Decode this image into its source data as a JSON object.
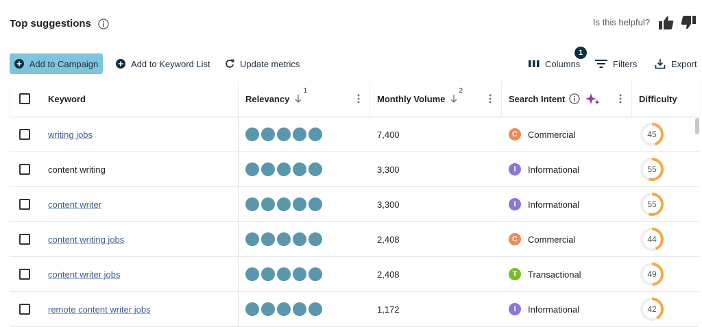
{
  "header": {
    "title": "Top suggestions",
    "helpful": "Is this helpful?"
  },
  "toolbar": {
    "add_campaign": "Add to Campaign",
    "add_list": "Add to Keyword List",
    "update": "Update metrics",
    "columns": "Columns",
    "columns_badge": "1",
    "filters": "Filters",
    "export": "Export"
  },
  "table": {
    "columns": {
      "keyword": "Keyword",
      "relevancy": "Relevancy",
      "relevancy_sort": "1",
      "volume": "Monthly Volume",
      "volume_sort": "2",
      "intent": "Search Intent",
      "difficulty": "Difficulty"
    },
    "intent_colors": {
      "Commercial": "#ef8a57",
      "Informational": "#8878d8",
      "Transactional": "#7dbb2f"
    },
    "rows": [
      {
        "keyword": "writing jobs",
        "linked": true,
        "relevancy": 5,
        "volume": "7,400",
        "intent_letter": "C",
        "intent": "Commercial",
        "difficulty": 45
      },
      {
        "keyword": "content writing",
        "linked": false,
        "relevancy": 5,
        "volume": "3,300",
        "intent_letter": "I",
        "intent": "Informational",
        "difficulty": 55
      },
      {
        "keyword": "content writer",
        "linked": true,
        "relevancy": 5,
        "volume": "3,300",
        "intent_letter": "I",
        "intent": "Informational",
        "difficulty": 55
      },
      {
        "keyword": "content writing jobs",
        "linked": true,
        "relevancy": 5,
        "volume": "2,408",
        "intent_letter": "C",
        "intent": "Commercial",
        "difficulty": 44
      },
      {
        "keyword": "content writer jobs",
        "linked": true,
        "relevancy": 5,
        "volume": "2,408",
        "intent_letter": "T",
        "intent": "Transactional",
        "difficulty": 49
      },
      {
        "keyword": "remote content writer jobs",
        "linked": true,
        "relevancy": 5,
        "volume": "1,172",
        "intent_letter": "I",
        "intent": "Informational",
        "difficulty": 42
      }
    ]
  }
}
